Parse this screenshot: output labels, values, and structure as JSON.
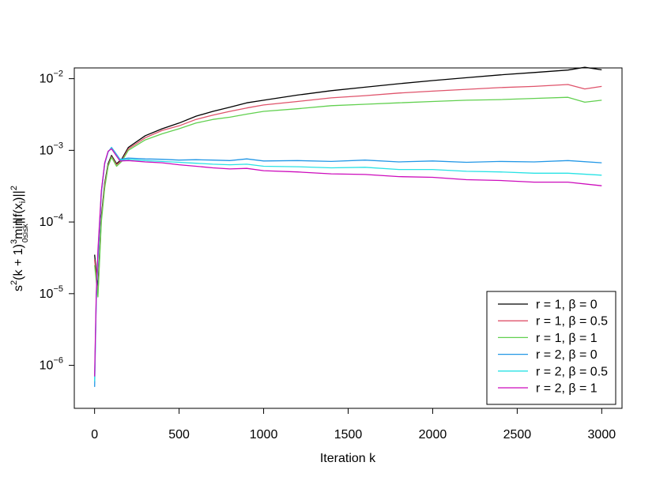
{
  "chart_data": {
    "type": "line",
    "title": "",
    "xlabel": "Iteration  k",
    "ylabel_parts": {
      "prefix": "s",
      "sup1": "2",
      "mid": "(k + 1)",
      "sup2": "3",
      "minword": "min",
      "minsub": "0≤i≤k",
      "norm": "||f(x",
      "normsub": "i",
      "close": ")||",
      "sup3": "2"
    },
    "x_scale": "linear",
    "y_scale": "log10",
    "xlim": [
      -120,
      3120
    ],
    "ylim_log10": [
      -6.6,
      -1.85
    ],
    "x_ticks": [
      0,
      500,
      1000,
      1500,
      2000,
      2500,
      3000
    ],
    "x_tick_labels": [
      "0",
      "500",
      "1000",
      "1500",
      "2000",
      "2500",
      "3000"
    ],
    "y_ticks": [
      {
        "base": "10",
        "exp": "−6",
        "value": 1e-06
      },
      {
        "base": "10",
        "exp": "−5",
        "value": 1e-05
      },
      {
        "base": "10",
        "exp": "−4",
        "value": 0.0001
      },
      {
        "base": "10",
        "exp": "−3",
        "value": 0.001
      },
      {
        "base": "10",
        "exp": "−2",
        "value": 0.01
      }
    ],
    "grid": false,
    "legend_position": "bottom-right",
    "series": [
      {
        "name": "r = 1, β = 0",
        "color": "#000000",
        "x": [
          0,
          20,
          40,
          60,
          80,
          100,
          130,
          160,
          200,
          300,
          400,
          500,
          600,
          700,
          800,
          900,
          1000,
          1200,
          1400,
          1600,
          1800,
          2000,
          2200,
          2400,
          2600,
          2800,
          2900,
          3000
        ],
        "y": [
          3.5e-05,
          1.2e-05,
          0.00012,
          0.00035,
          0.00065,
          0.00085,
          0.00065,
          0.00075,
          0.0011,
          0.0016,
          0.002,
          0.0024,
          0.003,
          0.0035,
          0.004,
          0.0046,
          0.005,
          0.0059,
          0.0068,
          0.0076,
          0.0085,
          0.0094,
          0.0103,
          0.0113,
          0.0122,
          0.0132,
          0.0144,
          0.0133
        ]
      },
      {
        "name": "r = 1, β = 0.5",
        "color": "#DF536B",
        "x": [
          0,
          20,
          40,
          60,
          80,
          100,
          130,
          160,
          200,
          300,
          400,
          500,
          600,
          700,
          800,
          900,
          1000,
          1200,
          1400,
          1600,
          1800,
          2000,
          2200,
          2400,
          2600,
          2800,
          2900,
          3000
        ],
        "y": [
          3e-05,
          1e-05,
          0.00011,
          0.00033,
          0.00062,
          0.00082,
          0.00063,
          0.00072,
          0.00105,
          0.0015,
          0.0019,
          0.0022,
          0.0027,
          0.0031,
          0.0035,
          0.0039,
          0.0043,
          0.0048,
          0.0054,
          0.0058,
          0.0063,
          0.0067,
          0.0071,
          0.0075,
          0.0078,
          0.0083,
          0.0072,
          0.0078
        ]
      },
      {
        "name": "r = 1, β = 1",
        "color": "#61D04F",
        "x": [
          0,
          20,
          40,
          60,
          80,
          100,
          130,
          160,
          200,
          300,
          400,
          500,
          600,
          700,
          800,
          900,
          1000,
          1200,
          1400,
          1600,
          1800,
          2000,
          2200,
          2400,
          2600,
          2800,
          2900,
          3000
        ],
        "y": [
          2.5e-05,
          9e-06,
          0.0001,
          0.0003,
          0.0006,
          0.0008,
          0.0006,
          0.0007,
          0.001,
          0.0014,
          0.0017,
          0.002,
          0.0024,
          0.0027,
          0.0029,
          0.0032,
          0.0035,
          0.0038,
          0.0042,
          0.0044,
          0.0046,
          0.0048,
          0.005,
          0.0051,
          0.0053,
          0.0055,
          0.0047,
          0.005
        ]
      },
      {
        "name": "r = 2, β = 0",
        "color": "#2297E6",
        "x": [
          0,
          10,
          20,
          40,
          60,
          80,
          100,
          120,
          150,
          200,
          300,
          400,
          500,
          600,
          700,
          800,
          900,
          1000,
          1200,
          1400,
          1600,
          1800,
          2000,
          2200,
          2400,
          2600,
          2800,
          3000
        ],
        "y": [
          5e-07,
          8e-06,
          3e-05,
          0.00025,
          0.00065,
          0.00095,
          0.0011,
          0.00095,
          0.00075,
          0.00078,
          0.00076,
          0.00075,
          0.00073,
          0.00074,
          0.00073,
          0.00072,
          0.00076,
          0.00071,
          0.00072,
          0.0007,
          0.00073,
          0.00069,
          0.00071,
          0.00068,
          0.0007,
          0.00069,
          0.00072,
          0.00067
        ]
      },
      {
        "name": "r = 2, β = 0.5",
        "color": "#28E2E5",
        "x": [
          0,
          10,
          20,
          40,
          60,
          80,
          100,
          120,
          150,
          200,
          300,
          400,
          500,
          600,
          700,
          800,
          900,
          1000,
          1200,
          1400,
          1600,
          1800,
          2000,
          2200,
          2400,
          2600,
          2800,
          3000
        ],
        "y": [
          6e-07,
          9e-06,
          3.5e-05,
          0.00026,
          0.00066,
          0.00096,
          0.00108,
          0.00093,
          0.00073,
          0.00075,
          0.00072,
          0.0007,
          0.00068,
          0.00066,
          0.00064,
          0.00063,
          0.00064,
          0.0006,
          0.00059,
          0.00057,
          0.00058,
          0.00054,
          0.00054,
          0.00051,
          0.0005,
          0.00048,
          0.00048,
          0.00045
        ]
      },
      {
        "name": "r = 2, β = 1",
        "color": "#CD0BBC",
        "x": [
          0,
          10,
          20,
          40,
          60,
          80,
          100,
          120,
          150,
          200,
          300,
          400,
          500,
          600,
          700,
          800,
          900,
          1000,
          1200,
          1400,
          1600,
          1800,
          2000,
          2200,
          2400,
          2600,
          2800,
          3000
        ],
        "y": [
          7e-07,
          1e-05,
          4e-05,
          0.00027,
          0.00067,
          0.00097,
          0.00105,
          0.0009,
          0.00071,
          0.00072,
          0.00069,
          0.00067,
          0.00063,
          0.0006,
          0.00057,
          0.00055,
          0.00056,
          0.00052,
          0.0005,
          0.00047,
          0.00046,
          0.00043,
          0.00042,
          0.00039,
          0.00038,
          0.00036,
          0.00036,
          0.00032
        ]
      }
    ]
  }
}
